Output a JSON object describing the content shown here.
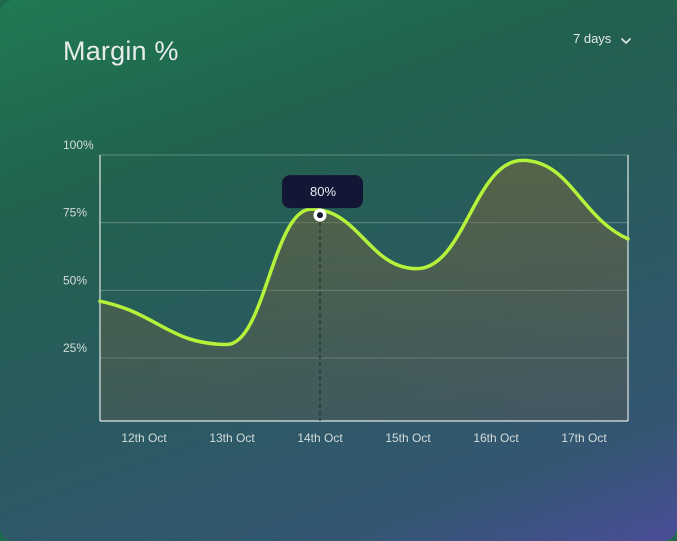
{
  "header": {
    "title": "Margin %",
    "range_label": "7 days"
  },
  "tooltip": {
    "label": "80%",
    "category": "14th Oct"
  },
  "colors": {
    "line": "#b5f23a",
    "tooltip_bg": "#131735",
    "grid": "#8fb3a5"
  },
  "icons": {
    "range_dropdown": "chevron-down-icon"
  },
  "chart_data": {
    "type": "area",
    "title": "Margin %",
    "categories": [
      "12th Oct",
      "13th Oct",
      "14th Oct",
      "15th Oct",
      "16th Oct",
      "17th Oct"
    ],
    "x_axis_labels": [
      "12th Oct",
      "13th Oct",
      "14th Oct",
      "15th Oct",
      "16th Oct",
      "17th Oct"
    ],
    "y_ticks": [
      "25%",
      "50%",
      "75%",
      "100%"
    ],
    "ylim": [
      0,
      100
    ],
    "grid": true,
    "highlight": {
      "category": "14th Oct",
      "value": 80
    },
    "series": [
      {
        "points": [
          {
            "x": 0.0,
            "y": 46
          },
          {
            "x": 1.2,
            "y": 30
          },
          {
            "x": 2.0,
            "y": 80
          },
          {
            "x": 3.0,
            "y": 58
          },
          {
            "x": 4.0,
            "y": 98
          },
          {
            "x": 5.0,
            "y": 69
          }
        ]
      }
    ]
  }
}
